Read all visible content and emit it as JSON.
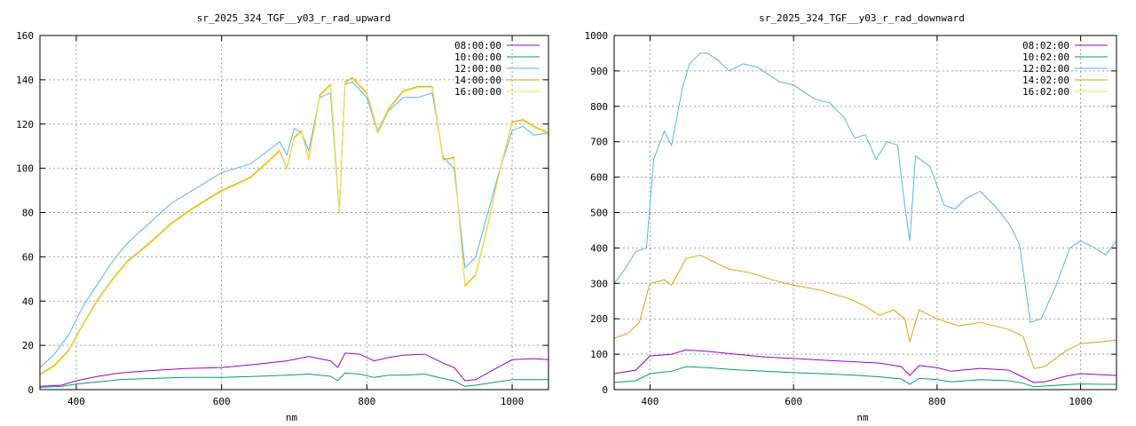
{
  "chart_data": [
    {
      "type": "line",
      "title": "sr_2025_324_TGF__y03_r_rad_upward",
      "xlabel": "nm",
      "ylabel": "",
      "xlim": [
        350,
        1050
      ],
      "ylim": [
        0,
        160
      ],
      "xticks": [
        400,
        600,
        800,
        1000
      ],
      "yticks": [
        0,
        20,
        40,
        60,
        80,
        100,
        120,
        140,
        160
      ],
      "grid": true,
      "legend_position": "top-right",
      "series": [
        {
          "name": "08:00:00",
          "color": "#9400d3",
          "x": [
            350,
            380,
            400,
            430,
            460,
            500,
            550,
            600,
            650,
            690,
            720,
            750,
            760,
            770,
            790,
            810,
            830,
            850,
            880,
            905,
            920,
            935,
            950,
            980,
            1000,
            1030,
            1050
          ],
          "y": [
            1.5,
            2,
            4,
            6,
            7.5,
            8.5,
            9.5,
            10,
            11.5,
            13,
            15,
            13,
            10,
            16.5,
            16,
            13,
            14.5,
            15.5,
            16,
            12,
            10,
            4,
            4.5,
            10,
            13.5,
            14,
            13.5
          ]
        },
        {
          "name": "10:00:00",
          "color": "#009e73",
          "x": [
            350,
            380,
            400,
            430,
            460,
            500,
            550,
            600,
            650,
            690,
            720,
            750,
            760,
            770,
            790,
            810,
            830,
            850,
            880,
            905,
            920,
            935,
            950,
            980,
            1000,
            1030,
            1050
          ],
          "y": [
            1,
            1.5,
            2.5,
            3.5,
            4.5,
            5,
            5.5,
            5.5,
            6,
            6.5,
            7,
            6,
            4,
            7.5,
            7,
            5.5,
            6.5,
            6.5,
            7,
            5,
            4,
            1.5,
            2,
            3.5,
            4.5,
            4.5,
            4.5
          ]
        },
        {
          "name": "12:00:00",
          "color": "#56b4e9",
          "x": [
            350,
            370,
            390,
            410,
            430,
            450,
            470,
            500,
            530,
            560,
            600,
            640,
            680,
            690,
            700,
            710,
            720,
            735,
            750,
            762,
            770,
            780,
            800,
            815,
            830,
            850,
            870,
            890,
            905,
            920,
            935,
            950,
            965,
            980,
            1000,
            1015,
            1030,
            1050
          ],
          "y": [
            10,
            16,
            25,
            38,
            48,
            58,
            66,
            75,
            84,
            90,
            98,
            102,
            112,
            106,
            118,
            116,
            108,
            132,
            134,
            80,
            138,
            139,
            132,
            116,
            126,
            132,
            132,
            134,
            105,
            100,
            55,
            60,
            78,
            96,
            117,
            119,
            115,
            116
          ]
        },
        {
          "name": "14:00:00",
          "color": "#e69f00",
          "x": [
            350,
            370,
            390,
            410,
            430,
            450,
            470,
            500,
            530,
            560,
            600,
            640,
            680,
            690,
            700,
            710,
            720,
            735,
            750,
            762,
            770,
            780,
            800,
            815,
            830,
            850,
            870,
            890,
            905,
            920,
            935,
            950,
            965,
            980,
            1000,
            1015,
            1030,
            1050
          ],
          "y": [
            7,
            11,
            18,
            30,
            41,
            50,
            58,
            66,
            75,
            82,
            90,
            96,
            108,
            100,
            114,
            117,
            104,
            133,
            138,
            81,
            139,
            141,
            134,
            117,
            127,
            135,
            137,
            137,
            104,
            105,
            47,
            52,
            72,
            95,
            121,
            122,
            119,
            116
          ]
        },
        {
          "name": "16:00:00",
          "color": "#f0e442",
          "x": [
            350,
            370,
            390,
            410,
            430,
            450,
            470,
            500,
            530,
            560,
            600,
            640,
            680,
            690,
            700,
            710,
            720,
            735,
            750,
            762,
            770,
            780,
            800,
            815,
            830,
            850,
            870,
            890,
            905,
            920,
            935,
            950,
            965,
            980,
            1000,
            1015,
            1030,
            1050
          ],
          "y": [
            6.5,
            10.5,
            17.5,
            29.5,
            40.5,
            49.5,
            57.5,
            65.5,
            74.5,
            81.5,
            89.5,
            95.5,
            107.5,
            99.5,
            113.5,
            116.5,
            103.5,
            132.5,
            137.5,
            80.5,
            138.5,
            140.5,
            133.5,
            116.5,
            126.5,
            134.5,
            136.5,
            136.5,
            103.5,
            104.5,
            46.5,
            51.5,
            71.5,
            94.5,
            120.5,
            121.5,
            118.5,
            115.5
          ]
        }
      ]
    },
    {
      "type": "line",
      "title": "sr_2025_324_TGF__y03_r_rad_downward",
      "xlabel": "nm",
      "ylabel": "",
      "xlim": [
        350,
        1050
      ],
      "ylim": [
        0,
        1000
      ],
      "xticks": [
        400,
        600,
        800,
        1000
      ],
      "yticks": [
        0,
        100,
        200,
        300,
        400,
        500,
        600,
        700,
        800,
        900,
        1000
      ],
      "grid": true,
      "legend_position": "top-right",
      "series": [
        {
          "name": "08:02:00",
          "color": "#9400d3",
          "x": [
            350,
            380,
            400,
            430,
            450,
            480,
            520,
            560,
            600,
            650,
            690,
            720,
            750,
            762,
            775,
            800,
            820,
            860,
            900,
            920,
            935,
            950,
            980,
            1000,
            1030,
            1050
          ],
          "y": [
            45,
            55,
            95,
            100,
            112,
            108,
            100,
            92,
            88,
            82,
            78,
            75,
            65,
            40,
            68,
            62,
            52,
            60,
            55,
            35,
            20,
            22,
            38,
            45,
            42,
            40
          ]
        },
        {
          "name": "10:02:00",
          "color": "#009e73",
          "x": [
            350,
            380,
            400,
            430,
            450,
            480,
            520,
            560,
            600,
            650,
            690,
            720,
            750,
            762,
            775,
            800,
            820,
            860,
            900,
            920,
            935,
            950,
            980,
            1000,
            1030,
            1050
          ],
          "y": [
            20,
            25,
            45,
            52,
            65,
            62,
            56,
            52,
            48,
            44,
            40,
            36,
            30,
            15,
            32,
            28,
            22,
            28,
            25,
            18,
            8,
            10,
            14,
            16,
            15,
            15
          ]
        },
        {
          "name": "12:02:00",
          "color": "#56b4e9",
          "x": [
            350,
            365,
            380,
            395,
            405,
            420,
            430,
            445,
            455,
            470,
            480,
            495,
            510,
            530,
            550,
            580,
            600,
            630,
            650,
            670,
            685,
            700,
            715,
            730,
            745,
            755,
            762,
            770,
            790,
            810,
            825,
            840,
            860,
            880,
            900,
            915,
            930,
            945,
            965,
            985,
            1000,
            1020,
            1035,
            1050
          ],
          "y": [
            300,
            340,
            390,
            400,
            650,
            730,
            690,
            850,
            920,
            950,
            950,
            930,
            900,
            920,
            910,
            870,
            860,
            820,
            810,
            770,
            710,
            720,
            650,
            700,
            690,
            520,
            420,
            660,
            630,
            520,
            510,
            540,
            560,
            520,
            470,
            410,
            190,
            200,
            290,
            400,
            420,
            400,
            380,
            420
          ]
        },
        {
          "name": "14:02:00",
          "color": "#e69f00",
          "x": [
            350,
            370,
            385,
            400,
            420,
            430,
            450,
            470,
            490,
            510,
            540,
            570,
            600,
            640,
            680,
            700,
            720,
            740,
            755,
            762,
            775,
            800,
            830,
            860,
            900,
            920,
            935,
            950,
            980,
            1000,
            1030,
            1050
          ],
          "y": [
            145,
            160,
            190,
            300,
            310,
            295,
            370,
            380,
            360,
            340,
            330,
            310,
            295,
            280,
            255,
            235,
            210,
            225,
            200,
            135,
            225,
            200,
            180,
            190,
            170,
            150,
            60,
            65,
            110,
            130,
            135,
            140
          ]
        },
        {
          "name": "16:02:00",
          "color": "#f0e442",
          "x": [
            350,
            1050
          ],
          "y": [
            0,
            0
          ]
        }
      ]
    }
  ]
}
